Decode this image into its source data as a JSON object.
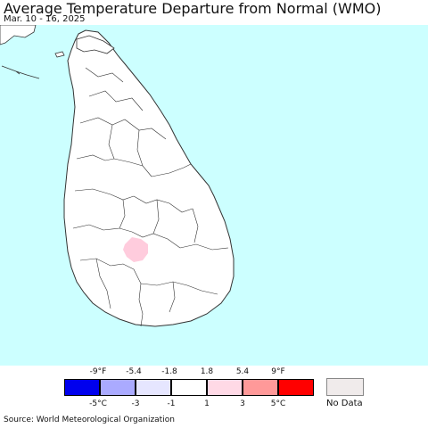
{
  "title": "Average Temperature Departure from Normal (WMO)",
  "subtitle": "Mar. 10 - 16, 2025",
  "source": "Source: World Meteorological Organization",
  "colors": {
    "ocean": "#ccffff",
    "land": "#ffffff",
    "boundary": "#333333",
    "anomaly_1_to_3C": "#ffccdd"
  },
  "legend": {
    "fahrenheit_ticks": [
      "-9°F",
      "-5.4",
      "-1.8",
      "1.8",
      "5.4",
      "9°F"
    ],
    "celsius_ticks": [
      "-5°C",
      "-3",
      "-1",
      "1",
      "3",
      "5°C"
    ],
    "bins": [
      {
        "color": "#0000ee",
        "label": "below -5°C"
      },
      {
        "color": "#aaaaff",
        "label": "-5 to -3°C"
      },
      {
        "color": "#e6e6ff",
        "label": "-3 to -1°C"
      },
      {
        "color": "#ffffff",
        "label": "-1 to 1°C"
      },
      {
        "color": "#ffd9e6",
        "label": "1 to 3°C"
      },
      {
        "color": "#ff9999",
        "label": "3 to 5°C"
      },
      {
        "color": "#ff0000",
        "label": "above 5°C"
      }
    ],
    "no_data_label": "No Data",
    "no_data_color": "#f0ebeb"
  }
}
